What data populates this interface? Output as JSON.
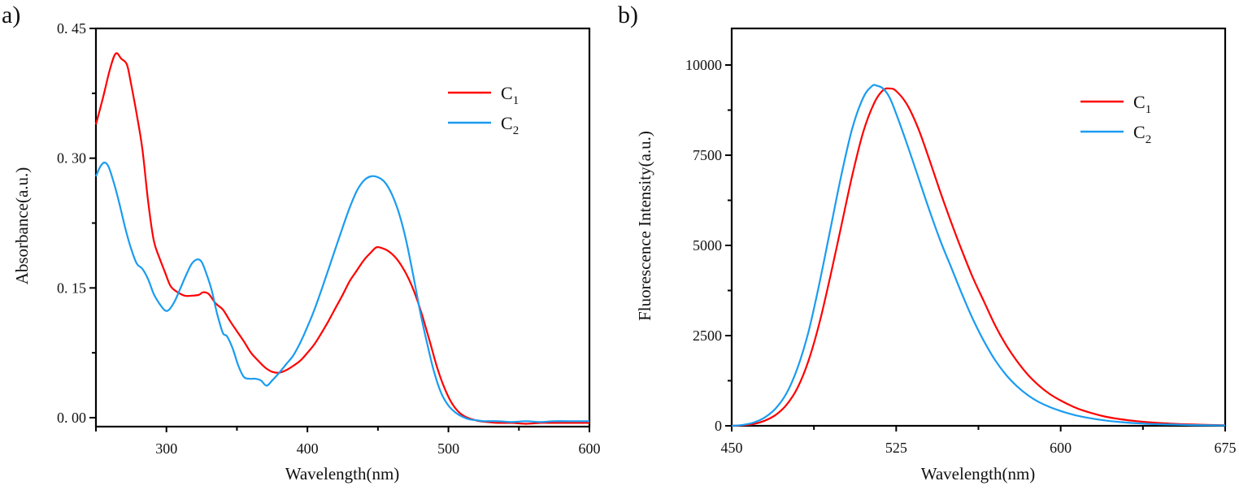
{
  "chart_data": [
    {
      "type": "line",
      "panel_label": "a)",
      "title": "",
      "xlabel": "Wavelength(nm)",
      "ylabel": "Absorbance(a.u.)",
      "xlim": [
        250,
        600
      ],
      "ylim": [
        -0.01,
        0.45
      ],
      "xticks": [
        300,
        400,
        500,
        600
      ],
      "xtick_labels": [
        "300",
        "400",
        "500",
        "600"
      ],
      "xminor": [
        350,
        450,
        550
      ],
      "yticks": [
        0.0,
        0.15,
        0.3,
        0.45
      ],
      "ytick_labels": [
        "0. 00",
        "0. 15",
        "0. 30",
        "0. 45"
      ],
      "yminor": [
        0.075,
        0.225,
        0.375
      ],
      "grid": false,
      "legend_position": "top-right",
      "series": [
        {
          "name": "C1",
          "label_main": "C",
          "label_sub": "1",
          "color": "#ff0000",
          "x": [
            250,
            255,
            260,
            264,
            268,
            272,
            275,
            279,
            283,
            287,
            291,
            295,
            299,
            303,
            308,
            313,
            318,
            323,
            326,
            330,
            335,
            340,
            345,
            350,
            355,
            360,
            365,
            370,
            375,
            380,
            385,
            390,
            395,
            400,
            405,
            410,
            415,
            420,
            425,
            430,
            435,
            440,
            445,
            449,
            453,
            457,
            462,
            467,
            472,
            477,
            482,
            487,
            492,
            497,
            502,
            507,
            512,
            517,
            522,
            527,
            535,
            545,
            555,
            565,
            575,
            585,
            600
          ],
          "y": [
            0.339,
            0.37,
            0.403,
            0.421,
            0.415,
            0.408,
            0.385,
            0.35,
            0.31,
            0.25,
            0.205,
            0.185,
            0.168,
            0.152,
            0.145,
            0.141,
            0.141,
            0.142,
            0.145,
            0.143,
            0.132,
            0.125,
            0.112,
            0.1,
            0.088,
            0.075,
            0.066,
            0.058,
            0.053,
            0.052,
            0.055,
            0.06,
            0.066,
            0.075,
            0.085,
            0.098,
            0.112,
            0.127,
            0.142,
            0.158,
            0.17,
            0.182,
            0.191,
            0.197,
            0.196,
            0.193,
            0.186,
            0.175,
            0.16,
            0.14,
            0.115,
            0.087,
            0.058,
            0.035,
            0.018,
            0.007,
            0.001,
            -0.002,
            -0.004,
            -0.005,
            -0.006,
            -0.006,
            -0.007,
            -0.006,
            -0.006,
            -0.006,
            -0.006
          ]
        },
        {
          "name": "C2",
          "label_main": "C",
          "label_sub": "2",
          "color": "#1a9cf0",
          "x": [
            250,
            253,
            256,
            259,
            263,
            267,
            271,
            275,
            279,
            283,
            287,
            291,
            295,
            299,
            302,
            306,
            310,
            314,
            318,
            322,
            325,
            328,
            332,
            336,
            340,
            343,
            347,
            351,
            355,
            359,
            363,
            367,
            371,
            375,
            380,
            385,
            390,
            395,
            400,
            405,
            410,
            415,
            420,
            425,
            430,
            435,
            440,
            445,
            450,
            455,
            460,
            465,
            470,
            475,
            480,
            485,
            490,
            495,
            500,
            505,
            510,
            515,
            520,
            525,
            535,
            545,
            555,
            565,
            575,
            585,
            600
          ],
          "y": [
            0.279,
            0.29,
            0.295,
            0.29,
            0.27,
            0.245,
            0.218,
            0.195,
            0.178,
            0.172,
            0.16,
            0.143,
            0.132,
            0.124,
            0.125,
            0.135,
            0.15,
            0.165,
            0.178,
            0.183,
            0.18,
            0.168,
            0.148,
            0.12,
            0.098,
            0.094,
            0.08,
            0.06,
            0.047,
            0.045,
            0.045,
            0.043,
            0.037,
            0.043,
            0.052,
            0.062,
            0.072,
            0.087,
            0.105,
            0.125,
            0.148,
            0.172,
            0.196,
            0.22,
            0.243,
            0.262,
            0.274,
            0.279,
            0.278,
            0.272,
            0.258,
            0.236,
            0.205,
            0.165,
            0.122,
            0.085,
            0.052,
            0.028,
            0.014,
            0.006,
            0.001,
            -0.002,
            -0.003,
            -0.004,
            -0.004,
            -0.005,
            -0.004,
            -0.005,
            -0.004,
            -0.004,
            -0.004
          ]
        }
      ]
    },
    {
      "type": "line",
      "panel_label": "b)",
      "title": "",
      "xlabel": "Wavelength(nm)",
      "ylabel": "Fluorescence Intensity(a.u.)",
      "xlim": [
        450,
        675
      ],
      "ylim": [
        0,
        11000
      ],
      "xticks": [
        450,
        525,
        600,
        675
      ],
      "xtick_labels": [
        "450",
        "525",
        "600",
        "675"
      ],
      "xminor": [
        487.5,
        562.5,
        637.5
      ],
      "yticks": [
        0,
        2500,
        5000,
        7500,
        10000
      ],
      "ytick_labels": [
        "0",
        "2500",
        "5000",
        "7500",
        "10000"
      ],
      "yminor": [
        1250,
        3750,
        6250,
        8750
      ],
      "grid": false,
      "legend_position": "top-right",
      "series": [
        {
          "name": "C1",
          "label_main": "C",
          "label_sub": "1",
          "color": "#ff0000",
          "x": [
            450,
            455,
            460,
            465,
            470,
            475,
            480,
            485,
            490,
            495,
            500,
            505,
            510,
            515,
            519,
            522,
            525,
            530,
            535,
            540,
            545,
            550,
            555,
            560,
            565,
            570,
            575,
            580,
            585,
            590,
            595,
            600,
            605,
            610,
            620,
            630,
            640,
            650,
            660,
            675
          ],
          "y": [
            0,
            15,
            50,
            140,
            300,
            580,
            1050,
            1800,
            2850,
            4150,
            5550,
            6950,
            8150,
            8950,
            9300,
            9350,
            9280,
            8900,
            8250,
            7400,
            6500,
            5650,
            4850,
            4100,
            3450,
            2800,
            2250,
            1800,
            1420,
            1120,
            880,
            700,
            550,
            430,
            260,
            160,
            100,
            60,
            35,
            15
          ]
        },
        {
          "name": "C2",
          "label_main": "C",
          "label_sub": "2",
          "color": "#1a9cf0",
          "x": [
            450,
            455,
            460,
            465,
            470,
            475,
            480,
            485,
            490,
            495,
            500,
            505,
            510,
            514,
            516,
            519,
            522,
            525,
            530,
            535,
            540,
            545,
            550,
            555,
            560,
            565,
            570,
            575,
            580,
            585,
            590,
            595,
            600,
            605,
            610,
            620,
            630,
            640,
            650,
            660,
            675
          ],
          "y": [
            0,
            25,
            90,
            230,
            480,
            900,
            1600,
            2600,
            3950,
            5450,
            6950,
            8250,
            9100,
            9420,
            9430,
            9350,
            9100,
            8650,
            7800,
            6900,
            6000,
            5150,
            4400,
            3650,
            2950,
            2350,
            1830,
            1420,
            1100,
            850,
            660,
            520,
            410,
            320,
            250,
            150,
            90,
            55,
            35,
            20,
            10
          ]
        }
      ]
    }
  ]
}
